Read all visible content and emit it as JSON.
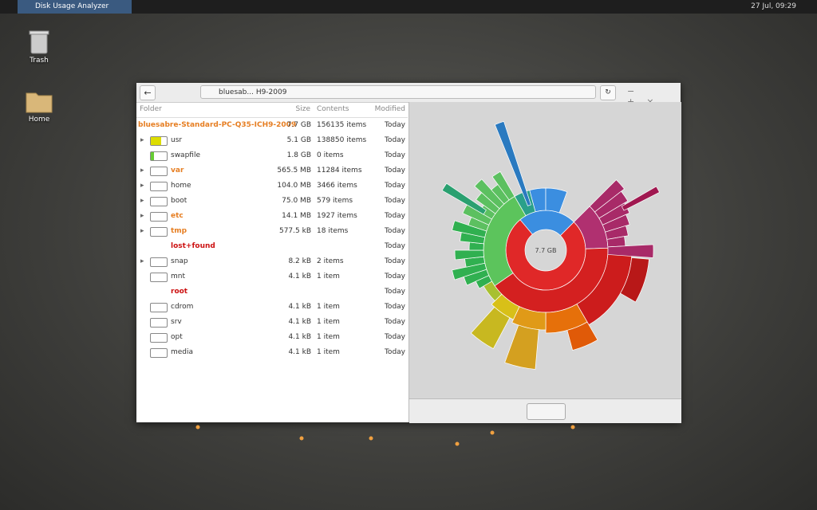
{
  "taskbar": {
    "app_title": "Disk Usage Analyzer",
    "clock": "27 Jul, 09:29"
  },
  "desktop": {
    "icons": [
      "Trash",
      "Home"
    ]
  },
  "window": {
    "location": "bluesab... H9-2009",
    "columns": [
      "Folder",
      "Size",
      "Contents",
      "Modified"
    ],
    "root": {
      "name": "bluesabre-Standard-PC-Q35-ICH9-2009",
      "size": "7.7 GB",
      "contents": "156135 items",
      "modified": "Today"
    },
    "rows": [
      {
        "name": "usr",
        "size": "5.1 GB",
        "contents": "138850 items",
        "modified": "Today",
        "expander": true
      },
      {
        "name": "swapfile",
        "size": "1.8 GB",
        "contents": "0 items",
        "modified": "Today"
      },
      {
        "name": "var",
        "size": "565.5 MB",
        "contents": "11284 items",
        "modified": "Today",
        "expander": true,
        "color": "#e67e22"
      },
      {
        "name": "home",
        "size": "104.0 MB",
        "contents": "3466 items",
        "modified": "Today",
        "expander": true
      },
      {
        "name": "boot",
        "size": "75.0 MB",
        "contents": "579 items",
        "modified": "Today",
        "expander": true
      },
      {
        "name": "etc",
        "size": "14.1 MB",
        "contents": "1927 items",
        "modified": "Today",
        "expander": true,
        "color": "#e67e22"
      },
      {
        "name": "tmp",
        "size": "577.5 kB",
        "contents": "18 items",
        "modified": "Today",
        "expander": true,
        "color": "#e67e22"
      },
      {
        "name": "lost+found",
        "modified": "Today",
        "color": "#cc1111"
      },
      {
        "name": "snap",
        "size": "8.2 kB",
        "contents": "2 items",
        "modified": "Today",
        "expander": true
      },
      {
        "name": "mnt",
        "size": "4.1 kB",
        "contents": "1 item",
        "modified": "Today"
      },
      {
        "name": "root",
        "modified": "Today",
        "color": "#cc1111"
      },
      {
        "name": "cdrom",
        "size": "4.1 kB",
        "contents": "1 item",
        "modified": "Today"
      },
      {
        "name": "srv",
        "size": "4.1 kB",
        "contents": "1 item",
        "modified": "Today"
      },
      {
        "name": "opt",
        "size": "4.1 kB",
        "contents": "1 item",
        "modified": "Today"
      },
      {
        "name": "media",
        "size": "4.1 kB",
        "contents": "1 item",
        "modified": "Today"
      }
    ],
    "chart_center": "7.7 GB"
  }
}
